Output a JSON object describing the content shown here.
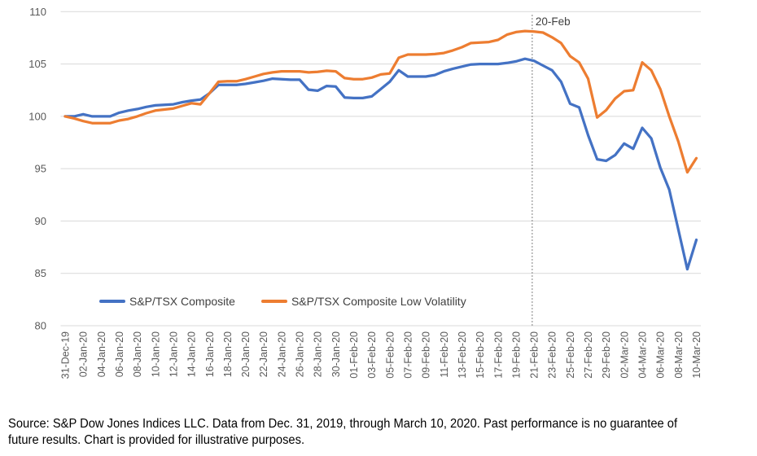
{
  "chart_data": {
    "type": "line",
    "title": "",
    "xlabel": "",
    "ylabel": "",
    "ylim": [
      80,
      110
    ],
    "y_ticks": [
      110,
      105,
      100,
      95,
      90,
      85,
      80
    ],
    "grid": true,
    "x_tick_every": 2,
    "legend_position": "bottom-inside",
    "x": [
      "31-Dec-19",
      "01-Jan-20",
      "02-Jan-20",
      "03-Jan-20",
      "04-Jan-20",
      "05-Jan-20",
      "06-Jan-20",
      "07-Jan-20",
      "08-Jan-20",
      "09-Jan-20",
      "10-Jan-20",
      "11-Jan-20",
      "12-Jan-20",
      "13-Jan-20",
      "14-Jan-20",
      "15-Jan-20",
      "16-Jan-20",
      "17-Jan-20",
      "18-Jan-20",
      "19-Jan-20",
      "20-Jan-20",
      "21-Jan-20",
      "22-Jan-20",
      "23-Jan-20",
      "24-Jan-20",
      "25-Jan-20",
      "26-Jan-20",
      "27-Jan-20",
      "28-Jan-20",
      "29-Jan-20",
      "30-Jan-20",
      "31-Jan-20",
      "01-Feb-20",
      "02-Feb-20",
      "03-Feb-20",
      "04-Feb-20",
      "05-Feb-20",
      "06-Feb-20",
      "07-Feb-20",
      "08-Feb-20",
      "09-Feb-20",
      "10-Feb-20",
      "11-Feb-20",
      "12-Feb-20",
      "13-Feb-20",
      "14-Feb-20",
      "15-Feb-20",
      "16-Feb-20",
      "17-Feb-20",
      "18-Feb-20",
      "19-Feb-20",
      "20-Feb-20",
      "21-Feb-20",
      "22-Feb-20",
      "23-Feb-20",
      "24-Feb-20",
      "25-Feb-20",
      "26-Feb-20",
      "27-Feb-20",
      "28-Feb-20",
      "29-Feb-20",
      "01-Mar-20",
      "02-Mar-20",
      "03-Mar-20",
      "04-Mar-20",
      "05-Mar-20",
      "06-Mar-20",
      "07-Mar-20",
      "08-Mar-20",
      "09-Mar-20",
      "10-Mar-20"
    ],
    "series": [
      {
        "name": "S&P/TSX Composite",
        "color": "#4472C4",
        "values": [
          100.0,
          100.0,
          100.2,
          100.0,
          100.0,
          100.0,
          100.35,
          100.55,
          100.7,
          100.9,
          101.05,
          101.1,
          101.15,
          101.35,
          101.5,
          101.6,
          102.2,
          103.0,
          103.0,
          103.0,
          103.1,
          103.25,
          103.4,
          103.6,
          103.55,
          103.5,
          103.5,
          102.55,
          102.45,
          102.9,
          102.85,
          101.8,
          101.75,
          101.75,
          101.9,
          102.6,
          103.3,
          104.4,
          103.8,
          103.8,
          103.8,
          103.95,
          104.3,
          104.55,
          104.75,
          104.95,
          105.0,
          105.0,
          105.0,
          105.1,
          105.25,
          105.5,
          105.3,
          104.85,
          104.4,
          103.3,
          101.2,
          100.85,
          98.2,
          95.9,
          95.75,
          96.3,
          97.4,
          96.9,
          98.9,
          97.9,
          95.1,
          93.0,
          89.2,
          85.4,
          88.2
        ]
      },
      {
        "name": "S&P/TSX Composite Low Volatility",
        "color": "#ED7D31",
        "values": [
          100.0,
          99.8,
          99.55,
          99.35,
          99.35,
          99.35,
          99.6,
          99.75,
          100.0,
          100.3,
          100.55,
          100.65,
          100.75,
          101.0,
          101.25,
          101.15,
          102.2,
          103.3,
          103.35,
          103.35,
          103.55,
          103.8,
          104.05,
          104.2,
          104.3,
          104.3,
          104.3,
          104.2,
          104.25,
          104.35,
          104.3,
          103.65,
          103.55,
          103.55,
          103.7,
          104.0,
          104.1,
          105.6,
          105.9,
          105.9,
          105.9,
          105.95,
          106.05,
          106.3,
          106.6,
          107.0,
          107.05,
          107.1,
          107.3,
          107.8,
          108.05,
          108.15,
          108.1,
          108.0,
          107.55,
          107.0,
          105.75,
          105.15,
          103.6,
          99.9,
          100.6,
          101.7,
          102.4,
          102.5,
          105.15,
          104.4,
          102.6,
          100.0,
          97.6,
          94.65,
          96.0
        ]
      }
    ],
    "annotation": {
      "label": "20-Feb",
      "day_index": 51.8
    }
  },
  "footer": {
    "line1": "Source: S&P Dow Jones Indices LLC.  Data from Dec. 31, 2019, through March 10, 2020.  Past performance is no guarantee of",
    "line2": "future results.  Chart is provided for illustrative purposes."
  },
  "colors": {
    "composite": "#4472C4",
    "low_volatility": "#ED7D31",
    "gridline": "#D9D9D9",
    "axis_text": "#595959",
    "annotation_line": "#7f7f7f",
    "background": "#ffffff"
  }
}
